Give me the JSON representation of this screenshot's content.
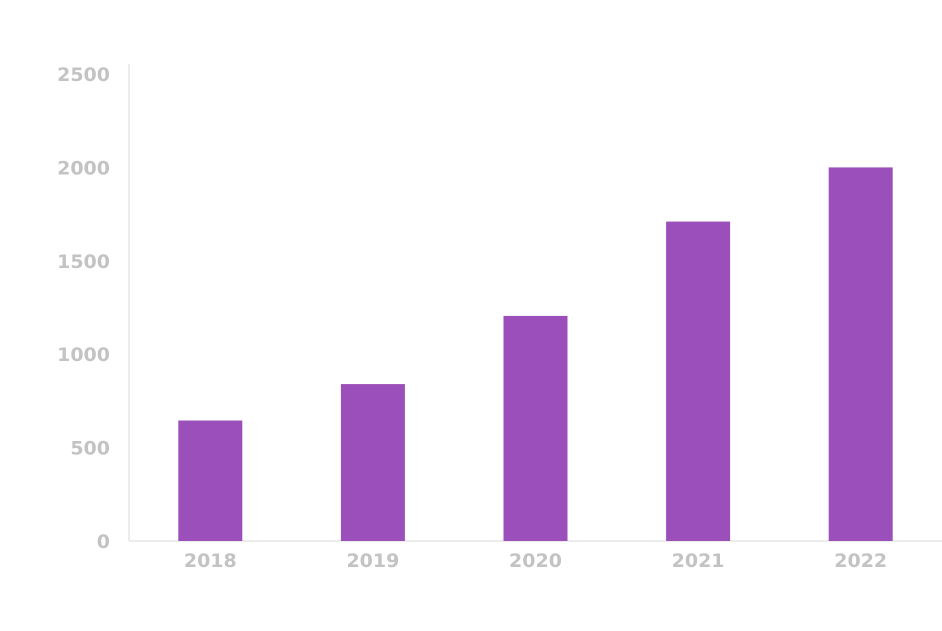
{
  "chart_data": {
    "type": "bar",
    "categories": [
      "2018",
      "2019",
      "2020",
      "2021",
      "2022"
    ],
    "values": [
      645,
      840,
      1205,
      1710,
      2000
    ],
    "ylim": [
      0,
      2500
    ],
    "yticks": [
      0,
      500,
      1000,
      1500,
      2000,
      2500
    ],
    "grid": false,
    "legend": "none",
    "colors": {
      "bar": "#9b4fbb",
      "tick_label": "#c3c3c3",
      "axis": "#e6e6e6"
    }
  }
}
